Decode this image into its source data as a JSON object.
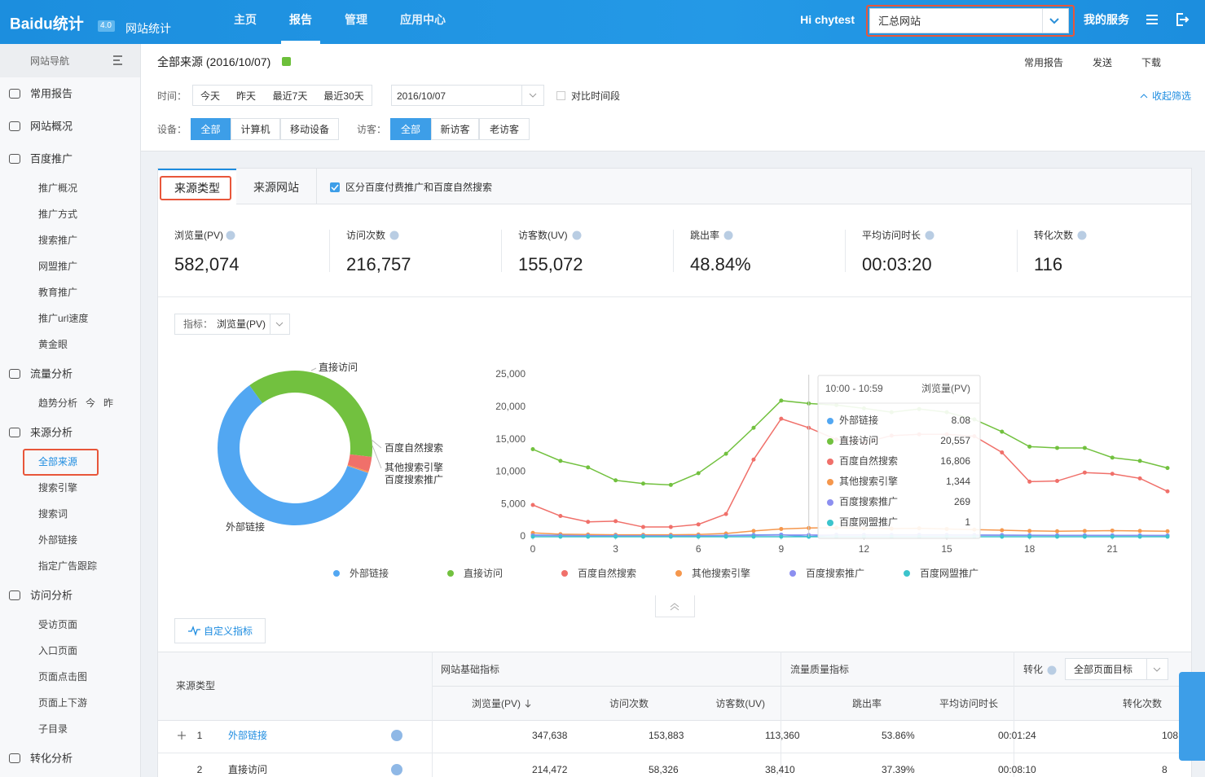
{
  "header": {
    "logo": "Baidu统计",
    "badge": "4.0",
    "product": "网站统计",
    "nav": [
      "主页",
      "报告",
      "管理",
      "应用中心"
    ],
    "greeting": "Hi chytest",
    "site_select": "汇总网站",
    "service": "我的服务"
  },
  "sidebar": {
    "title": "网站导航",
    "items": [
      {
        "label": "常用报告"
      },
      {
        "label": "网站概况"
      },
      {
        "label": "百度推广",
        "children": [
          {
            "label": "推广概况"
          },
          {
            "label": "推广方式"
          },
          {
            "label": "搜索推广"
          },
          {
            "label": "网盟推广"
          },
          {
            "label": "教育推广"
          },
          {
            "label": "推广url速度"
          },
          {
            "label": "黄金眼"
          }
        ]
      },
      {
        "label": "流量分析",
        "children": [
          {
            "label": "趋势分析",
            "extras": [
              "今",
              "昨"
            ]
          }
        ]
      },
      {
        "label": "来源分析",
        "children": [
          {
            "label": "全部来源"
          },
          {
            "label": "搜索引擎"
          },
          {
            "label": "搜索词"
          },
          {
            "label": "外部链接"
          },
          {
            "label": "指定广告跟踪"
          }
        ]
      },
      {
        "label": "访问分析",
        "children": [
          {
            "label": "受访页面"
          },
          {
            "label": "入口页面"
          },
          {
            "label": "页面点击图"
          },
          {
            "label": "页面上下游"
          },
          {
            "label": "子目录"
          }
        ]
      },
      {
        "label": "转化分析"
      }
    ]
  },
  "page": {
    "title": "全部来源 (2016/10/07)",
    "actions": [
      "常用报告",
      "发送",
      "下载"
    ],
    "time_label": "时间：",
    "time_buttons": [
      "今天",
      "昨天",
      "最近7天",
      "最近30天"
    ],
    "date": "2016/10/07",
    "compare": "对比时间段",
    "collapse": "收起筛选",
    "device_label": "设备：",
    "device_buttons": [
      "全部",
      "计算机",
      "移动设备"
    ],
    "visitor_label": "访客：",
    "visitor_buttons": [
      "全部",
      "新访客",
      "老访客"
    ]
  },
  "tabs": [
    "来源类型",
    "来源网站"
  ],
  "distinguish": "区分百度付费推广和百度自然搜索",
  "metrics": [
    {
      "label": "浏览量(PV)",
      "value": "582,074"
    },
    {
      "label": "访问次数",
      "value": "216,757"
    },
    {
      "label": "访客数(UV)",
      "value": "155,072"
    },
    {
      "label": "跳出率",
      "value": "48.84%"
    },
    {
      "label": "平均访问时长",
      "value": "00:03:20"
    },
    {
      "label": "转化次数",
      "value": "116"
    }
  ],
  "indicator": {
    "label": "指标：",
    "value": "浏览量(PV)"
  },
  "chart_data": [
    {
      "type": "pie",
      "categories": [
        "外部链接",
        "直接访问",
        "百度自然搜索",
        "其他搜索引擎",
        "百度搜索推广",
        null
      ],
      "values": [
        347638,
        214472,
        18000,
        1600,
        360,
        4
      ],
      "colors": [
        "#52a7f2",
        "#72c13f",
        "#f0706a",
        "#f5974d",
        "#8c8ff0",
        "#3cc4cc"
      ]
    },
    {
      "type": "line",
      "x": [
        0,
        1,
        2,
        3,
        4,
        5,
        6,
        7,
        8,
        9,
        10,
        11,
        12,
        13,
        14,
        15,
        16,
        17,
        18,
        19,
        20,
        21,
        22,
        23
      ],
      "xlim": [
        0,
        23
      ],
      "xticks": [
        0,
        3,
        6,
        9,
        12,
        15,
        18,
        21
      ],
      "ylim": [
        0,
        25000
      ],
      "yticks": [
        0,
        {
          "value": 5000,
          "label": "5,000"
        },
        {
          "value": 10000,
          "label": "10,000"
        },
        {
          "value": 15000,
          "label": "15,000"
        },
        {
          "value": 20000,
          "label": "20,000"
        },
        {
          "value": 25000,
          "label": "25,000"
        }
      ],
      "series": [
        {
          "name": "外部链接",
          "color": "#52a7f2",
          "values": [
            260,
            220,
            180,
            150,
            130,
            120,
            140,
            200,
            280,
            320,
            8.08,
            300,
            290,
            280,
            290,
            280,
            270,
            250,
            230,
            220,
            220,
            210,
            200,
            190
          ]
        },
        {
          "name": "直接访问",
          "color": "#72c13f",
          "values": [
            13500,
            11700,
            10700,
            8700,
            8200,
            8000,
            9800,
            12800,
            16800,
            21000,
            20557,
            20300,
            19800,
            19200,
            19700,
            19200,
            18100,
            16200,
            13900,
            13700,
            13700,
            12200,
            11700,
            10600
          ]
        },
        {
          "name": "百度自然搜索",
          "color": "#f0706a",
          "values": [
            4900,
            3200,
            2300,
            2400,
            1500,
            1500,
            1900,
            3500,
            11900,
            18200,
            16806,
            15000,
            14500,
            15600,
            15800,
            15800,
            15500,
            13000,
            8500,
            8600,
            9900,
            9700,
            9000,
            7000
          ]
        },
        {
          "name": "其他搜索引擎",
          "color": "#f5974d",
          "values": [
            600,
            400,
            350,
            300,
            300,
            300,
            350,
            500,
            900,
            1200,
            1344,
            1400,
            1300,
            1250,
            1300,
            1200,
            1100,
            1000,
            900,
            850,
            900,
            950,
            900,
            850
          ]
        },
        {
          "name": "百度搜索推广",
          "color": "#8c8ff0",
          "values": [
            200,
            180,
            160,
            150,
            140,
            140,
            150,
            180,
            220,
            260,
            269,
            270,
            260,
            250,
            260,
            250,
            240,
            230,
            220,
            210,
            210,
            200,
            200,
            190
          ]
        },
        {
          "name": "百度网盟推广",
          "color": "#3cc4cc",
          "values": [
            2,
            1,
            1,
            1,
            1,
            1,
            1,
            1,
            2,
            2,
            1,
            2,
            2,
            2,
            2,
            2,
            2,
            2,
            1,
            1,
            1,
            1,
            1,
            1
          ]
        }
      ],
      "tooltip": {
        "title": "10:00 - 10:59",
        "metric": "浏览量(PV)",
        "rows": [
          {
            "name": "外部链接",
            "value": "8.08"
          },
          {
            "name": "直接访问",
            "value": "20,557"
          },
          {
            "name": "百度自然搜索",
            "value": "16,806"
          },
          {
            "name": "其他搜索引擎",
            "value": "1,344"
          },
          {
            "name": "百度搜索推广",
            "value": "269"
          },
          {
            "name": "百度网盟推广",
            "value": "1"
          }
        ]
      }
    }
  ],
  "custom_metric": "自定义指标",
  "table": {
    "source_type": "来源类型",
    "groups": [
      "网站基础指标",
      "流量质量指标"
    ],
    "conversion": "转化",
    "goal_select": "全部页面目标",
    "columns": [
      "浏览量(PV)",
      "访问次数",
      "访客数(UV)",
      "跳出率",
      "平均访问时长",
      "转化次数"
    ],
    "rows": [
      [
        "1",
        "外部链接",
        "347,638",
        "153,883",
        "113,360",
        "53.86%",
        "00:01:24",
        "108"
      ],
      [
        "2",
        "直接访问",
        "214,472",
        "58,326",
        "38,410",
        "37.39%",
        "00:08:10",
        "8"
      ]
    ]
  }
}
